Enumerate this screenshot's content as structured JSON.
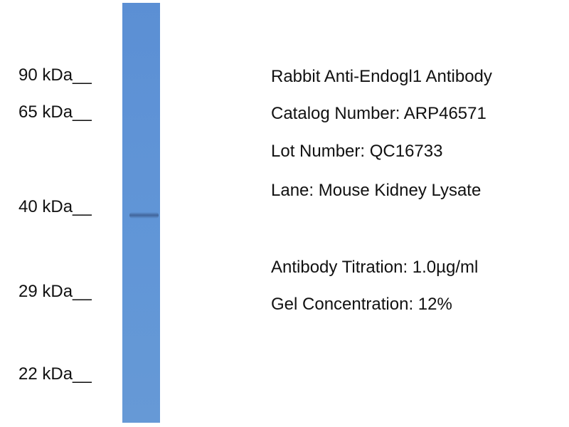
{
  "markers": [
    {
      "label": "90 kDa__"
    },
    {
      "label": "65 kDa__"
    },
    {
      "label": "40 kDa__"
    },
    {
      "label": "29 kDa__"
    },
    {
      "label": "22 kDa__"
    }
  ],
  "lane_color": "#5f93d6",
  "info": {
    "antibody": "Rabbit Anti-Endogl1 Antibody",
    "catalog": "Catalog Number: ARP46571",
    "lot": "Lot Number: QC16733",
    "lane": "Lane: Mouse Kidney Lysate",
    "titration": "Antibody Titration: 1.0µg/ml",
    "gel": "Gel Concentration: 12%"
  }
}
